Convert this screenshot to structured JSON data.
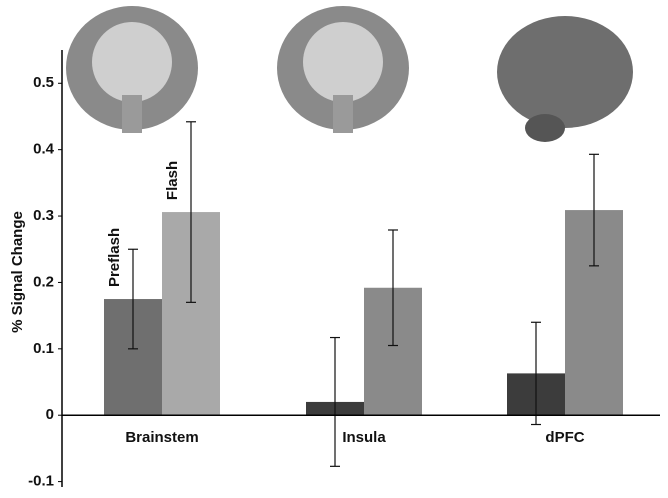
{
  "chart_data": {
    "type": "bar",
    "y_label": "% Signal Change",
    "categories": [
      "Brainstem",
      "Insula",
      "dPFC"
    ],
    "series": [
      {
        "name": "Preflash",
        "colors": [
          "#6f6f6f",
          "#3c3c3c",
          "#3c3c3c"
        ],
        "values": [
          0.175,
          0.02,
          0.063
        ],
        "errors": [
          0.075,
          0.097,
          0.077
        ]
      },
      {
        "name": "Flash",
        "colors": [
          "#a9a9a9",
          "#8a8a8a",
          "#8a8a8a"
        ],
        "values": [
          0.306,
          0.192,
          0.309
        ],
        "errors": [
          0.136,
          0.087,
          0.084
        ]
      }
    ],
    "ylim": [
      -0.1,
      0.52
    ],
    "yticks": [
      -0.1,
      0,
      0.1,
      0.2,
      0.3,
      0.4,
      0.5
    ],
    "grid": false
  }
}
